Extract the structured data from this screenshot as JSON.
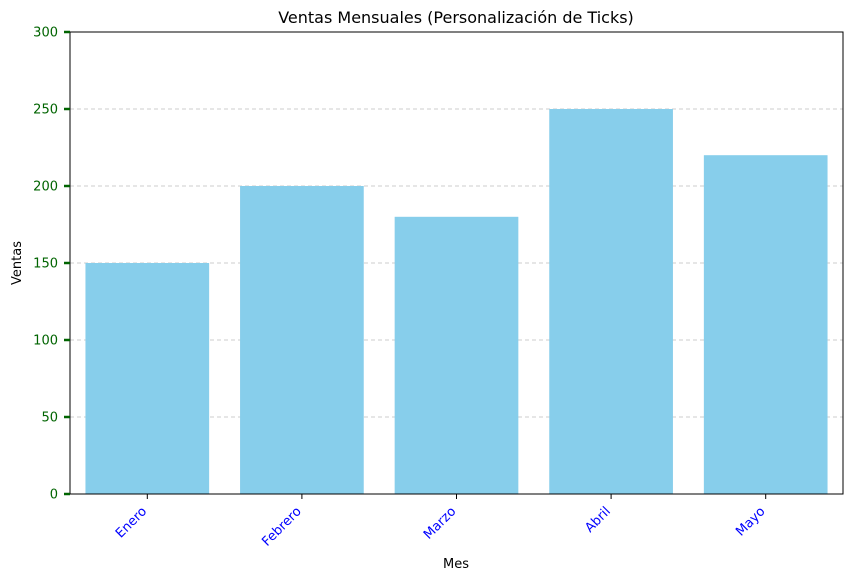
{
  "chart_data": {
    "type": "bar",
    "title": "Ventas Mensuales (Personalización de Ticks)",
    "xlabel": "Mes",
    "ylabel": "Ventas",
    "categories": [
      "Enero",
      "Febrero",
      "Marzo",
      "Abril",
      "Mayo"
    ],
    "values": [
      150,
      200,
      180,
      250,
      220
    ],
    "ylim": [
      0,
      300
    ],
    "yticks": [
      0,
      50,
      100,
      150,
      200,
      250,
      300
    ],
    "grid": "y-dashed",
    "colors": {
      "bar": "#87ceeb",
      "xtick_label": "#0000ff",
      "ytick": "#006400",
      "grid": "#cccccc"
    }
  }
}
